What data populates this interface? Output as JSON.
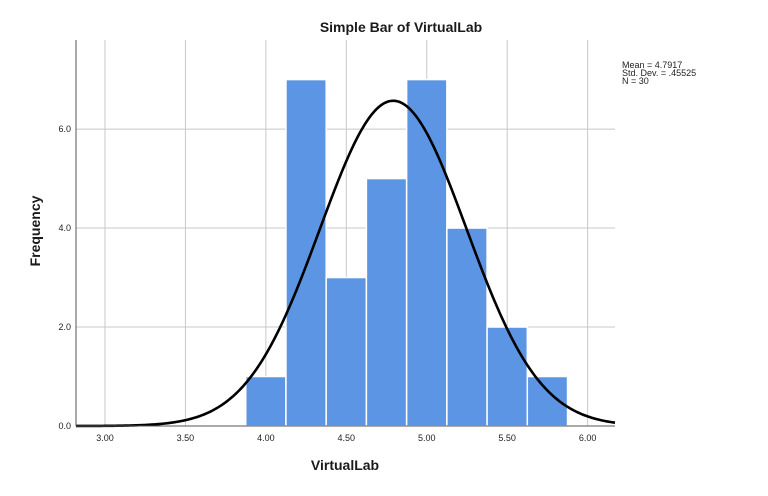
{
  "chart_data": {
    "type": "bar",
    "title": "Simple Bar of VirtualLab",
    "xlabel": "VirtualLab",
    "ylabel": "Frequency",
    "xlim": [
      2.82,
      6.17
    ],
    "ylim": [
      0,
      7.8
    ],
    "x_ticks": [
      {
        "value": 3.0,
        "label": "3.00"
      },
      {
        "value": 3.5,
        "label": "3.50"
      },
      {
        "value": 4.0,
        "label": "4.00"
      },
      {
        "value": 4.5,
        "label": "4.50"
      },
      {
        "value": 5.0,
        "label": "5.00"
      },
      {
        "value": 5.5,
        "label": "5.50"
      },
      {
        "value": 6.0,
        "label": "6.00"
      }
    ],
    "y_ticks": [
      {
        "value": 0,
        "label": "0.0"
      },
      {
        "value": 2,
        "label": "2.0"
      },
      {
        "value": 4,
        "label": "4.0"
      },
      {
        "value": 6,
        "label": "6.0"
      }
    ],
    "bins": [
      {
        "start": 3.875,
        "end": 4.125,
        "count": 1
      },
      {
        "start": 4.125,
        "end": 4.375,
        "count": 7
      },
      {
        "start": 4.375,
        "end": 4.625,
        "count": 3
      },
      {
        "start": 4.625,
        "end": 4.875,
        "count": 5
      },
      {
        "start": 4.875,
        "end": 5.125,
        "count": 7
      },
      {
        "start": 5.125,
        "end": 5.375,
        "count": 4
      },
      {
        "start": 5.375,
        "end": 5.625,
        "count": 2
      },
      {
        "start": 5.625,
        "end": 5.875,
        "count": 1
      }
    ],
    "normal_curve": {
      "mean": 4.7917,
      "sd": 0.45525,
      "n": 30,
      "bin_width": 0.25
    },
    "stats": [
      "Mean = 4.7917",
      "Std. Dev. = .45525",
      "N = 30"
    ],
    "grid": true,
    "bar_color": "#5b95e3",
    "bar_edge_color": "#ffffff",
    "curve_color": "#000000",
    "grid_color": "#c8c8c8"
  }
}
